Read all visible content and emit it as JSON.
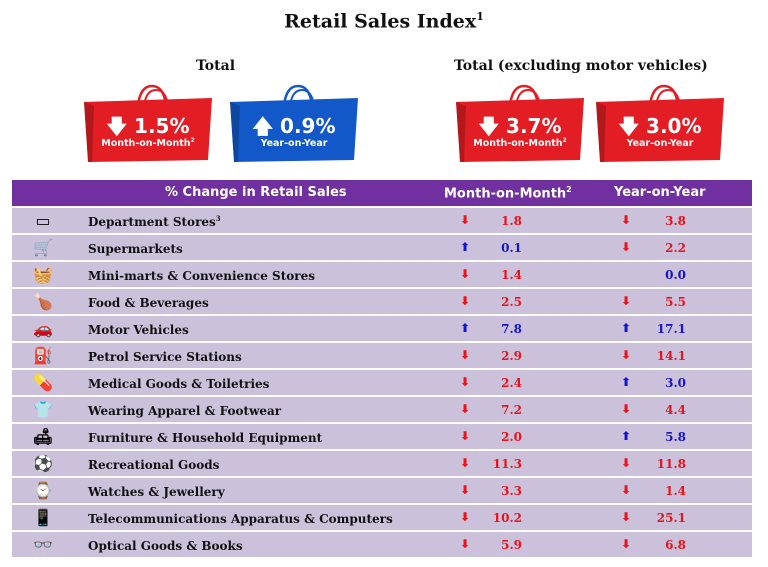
{
  "title": "Retail Sales Index",
  "title_sup": "1",
  "groups": {
    "total": "Total",
    "excl": "Total (excluding motor vehicles)"
  },
  "bags": [
    {
      "dir": "down",
      "arrow": "🡇",
      "value": "1.5%",
      "label": "Month-on-Month",
      "sup": "2",
      "color": "#e21d24"
    },
    {
      "dir": "up",
      "arrow": "🡅",
      "value": "0.9%",
      "label": "Year-on-Year",
      "sup": "",
      "color": "#1358c8"
    },
    {
      "dir": "down",
      "arrow": "🡇",
      "value": "3.7%",
      "label": "Month-on-Month",
      "sup": "2",
      "color": "#e21d24"
    },
    {
      "dir": "down",
      "arrow": "🡇",
      "value": "3.0%",
      "label": "Year-on-Year",
      "sup": "",
      "color": "#e21d24"
    }
  ],
  "table": {
    "header": {
      "category": "% Change in Retail Sales",
      "mom": "Month-on-Month",
      "mom_sup": "2",
      "yoy": "Year-on-Year"
    },
    "rows": [
      {
        "name": "Department Stores",
        "sup": "3",
        "icon": "store-icon",
        "mom_dir": "down",
        "mom": "1.8",
        "yoy_dir": "down",
        "yoy": "3.8"
      },
      {
        "name": "Supermarkets",
        "sup": "",
        "icon": "shopping-cart-icon",
        "mom_dir": "up",
        "mom": "0.1",
        "yoy_dir": "down",
        "yoy": "2.2"
      },
      {
        "name": "Mini-marts & Convenience Stores",
        "sup": "",
        "icon": "basket-icon",
        "mom_dir": "down",
        "mom": "1.4",
        "yoy_dir": "none",
        "yoy": "0.0"
      },
      {
        "name": "Food & Beverages",
        "sup": "",
        "icon": "food-icon",
        "mom_dir": "down",
        "mom": "2.5",
        "yoy_dir": "down",
        "yoy": "5.5"
      },
      {
        "name": "Motor Vehicles",
        "sup": "",
        "icon": "car-icon",
        "mom_dir": "up",
        "mom": "7.8",
        "yoy_dir": "up",
        "yoy": "17.1"
      },
      {
        "name": "Petrol Service Stations",
        "sup": "",
        "icon": "fuel-pump-icon",
        "mom_dir": "down",
        "mom": "2.9",
        "yoy_dir": "down",
        "yoy": "14.1"
      },
      {
        "name": "Medical Goods & Toiletries",
        "sup": "",
        "icon": "medicine-icon",
        "mom_dir": "down",
        "mom": "2.4",
        "yoy_dir": "up",
        "yoy": "3.0"
      },
      {
        "name": "Wearing Apparel & Footwear",
        "sup": "",
        "icon": "shirt-icon",
        "mom_dir": "down",
        "mom": "7.2",
        "yoy_dir": "down",
        "yoy": "4.4"
      },
      {
        "name": "Furniture & Household Equipment",
        "sup": "",
        "icon": "sofa-icon",
        "mom_dir": "down",
        "mom": "2.0",
        "yoy_dir": "up",
        "yoy": "5.8"
      },
      {
        "name": "Recreational Goods",
        "sup": "",
        "icon": "sports-balls-icon",
        "mom_dir": "down",
        "mom": "11.3",
        "yoy_dir": "down",
        "yoy": "11.8"
      },
      {
        "name": "Watches & Jewellery",
        "sup": "",
        "icon": "watch-icon",
        "mom_dir": "down",
        "mom": "3.3",
        "yoy_dir": "down",
        "yoy": "1.4"
      },
      {
        "name": "Telecommunications Apparatus & Computers",
        "sup": "",
        "icon": "phone-icon",
        "mom_dir": "down",
        "mom": "10.2",
        "yoy_dir": "down",
        "yoy": "25.1"
      },
      {
        "name": "Optical Goods & Books",
        "sup": "",
        "icon": "glasses-icon",
        "mom_dir": "down",
        "mom": "5.9",
        "yoy_dir": "down",
        "yoy": "6.8"
      }
    ]
  }
}
